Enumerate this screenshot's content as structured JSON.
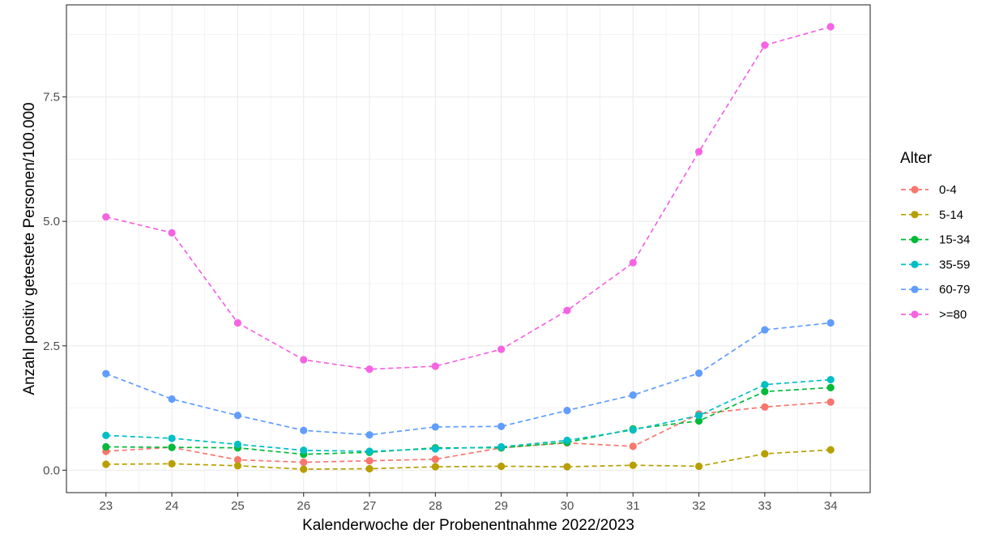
{
  "chart_data": {
    "type": "line",
    "title": "",
    "xlabel": "Kalenderwoche der Probenentnahme 2022/2023",
    "ylabel": "Anzahl positiv getestete Personen/100.000",
    "x": [
      23,
      24,
      25,
      26,
      27,
      28,
      29,
      30,
      31,
      32,
      33,
      34
    ],
    "x_ticks": [
      "23",
      "24",
      "25",
      "26",
      "27",
      "28",
      "29",
      "30",
      "31",
      "32",
      "33",
      "34"
    ],
    "y_ticks": [
      {
        "value": 0.0,
        "label": "0.0"
      },
      {
        "value": 2.5,
        "label": "2.5"
      },
      {
        "value": 5.0,
        "label": "5.0"
      },
      {
        "value": 7.5,
        "label": "7.5"
      }
    ],
    "xlim": [
      22.4,
      34.6
    ],
    "ylim": [
      -0.45,
      9.35
    ],
    "grid": true,
    "line_style": "dashed",
    "legend": {
      "title": "Alter",
      "position": "right"
    },
    "series": [
      {
        "name": "0-4",
        "color": "#F8766D",
        "values": [
          0.38,
          0.46,
          0.21,
          0.16,
          0.19,
          0.22,
          0.45,
          0.55,
          0.48,
          1.13,
          1.27,
          1.37
        ]
      },
      {
        "name": "5-14",
        "color": "#B79F00",
        "values": [
          0.12,
          0.13,
          0.09,
          0.02,
          0.03,
          0.07,
          0.08,
          0.07,
          0.1,
          0.08,
          0.33,
          0.41
        ]
      },
      {
        "name": "15-34",
        "color": "#00BA38",
        "values": [
          0.47,
          0.46,
          0.45,
          0.32,
          0.36,
          0.45,
          0.45,
          0.56,
          0.83,
          0.99,
          1.58,
          1.66
        ]
      },
      {
        "name": "35-59",
        "color": "#00BFC4",
        "values": [
          0.7,
          0.64,
          0.52,
          0.4,
          0.38,
          0.43,
          0.47,
          0.6,
          0.81,
          1.1,
          1.72,
          1.82
        ]
      },
      {
        "name": "60-79",
        "color": "#619CFF",
        "values": [
          1.94,
          1.43,
          1.1,
          0.8,
          0.71,
          0.87,
          0.88,
          1.2,
          1.51,
          1.95,
          2.82,
          2.96
        ]
      },
      {
        "name": ">=80",
        "color": "#F564E3",
        "values": [
          5.09,
          4.77,
          2.96,
          2.22,
          2.03,
          2.09,
          2.43,
          3.21,
          4.17,
          6.4,
          8.54,
          8.91
        ]
      }
    ]
  }
}
